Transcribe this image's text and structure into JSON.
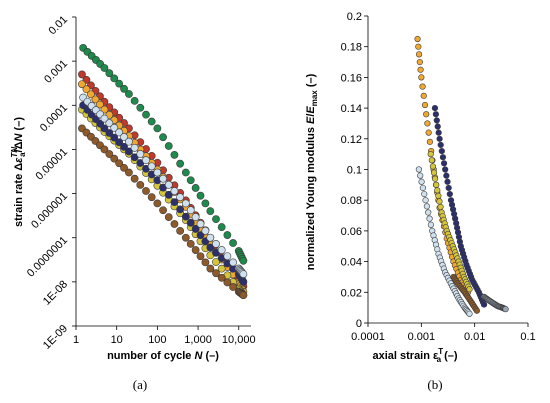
{
  "chart_data": [
    {
      "panel_label": "(a)",
      "type": "scatter",
      "title": "",
      "xlabel": "number of cycle N (–)",
      "xlabel_parts": [
        "number of cycle ",
        "N",
        " (–)"
      ],
      "ylabel": "strain rate Δε^TN_a/ΔN (–)",
      "ylabel_parts": {
        "a": "strain rate Δ",
        "b": "ε",
        "c": "TN",
        "d": "a",
        "e": "/Δ",
        "f": "N",
        "g": " (–)"
      },
      "x_scale": "log",
      "y_scale": "log",
      "xlim": [
        1,
        20000
      ],
      "ylim": [
        1e-09,
        0.01
      ],
      "x_ticks": [
        1,
        10,
        100,
        1000,
        10000
      ],
      "x_tick_labels": [
        "1",
        "10",
        "100",
        "1,000",
        "10,000"
      ],
      "y_ticks": [
        1e-09,
        1e-08,
        1e-07,
        1e-06,
        1e-05,
        0.0001,
        0.001,
        0.01
      ],
      "y_tick_labels": [
        "1E-09",
        "1E-08",
        "0.0000001",
        "0.000001",
        "0.00001",
        "0.0001",
        "0.001",
        "0.01"
      ],
      "grid": false,
      "series": [
        {
          "color": "#1e8a4c",
          "points": [
            [
              1.5,
              0.002
            ],
            [
              5,
              0.0007
            ],
            [
              20,
              0.00018
            ],
            [
              100,
              3e-05
            ],
            [
              500,
              3e-06
            ],
            [
              2000,
              4e-07
            ],
            [
              10000,
              5e-08
            ],
            [
              13000,
              3e-08
            ]
          ]
        },
        {
          "color": "#c0392b",
          "points": [
            [
              1.4,
              0.0005
            ],
            [
              5,
              0.00012
            ],
            [
              20,
              3e-05
            ],
            [
              100,
              5e-06
            ],
            [
              500,
              7e-07
            ],
            [
              2000,
              1e-07
            ],
            [
              8000,
              1.5e-08
            ],
            [
              13000,
              8e-09
            ]
          ]
        },
        {
          "color": "#f0a830",
          "points": [
            [
              1.4,
              0.0003
            ],
            [
              5,
              8e-05
            ],
            [
              20,
              2e-05
            ],
            [
              100,
              3.5e-06
            ],
            [
              500,
              5e-07
            ],
            [
              2000,
              7e-08
            ],
            [
              10000,
              1e-08
            ],
            [
              13000,
              6e-09
            ]
          ]
        },
        {
          "color": "#d4c53a",
          "points": [
            [
              1.4,
              8e-05
            ],
            [
              5,
              2.5e-05
            ],
            [
              20,
              8e-06
            ],
            [
              100,
              1.5e-06
            ],
            [
              500,
              2.5e-07
            ],
            [
              2000,
              4e-08
            ],
            [
              10000,
              7e-09
            ],
            [
              13000,
              5e-09
            ]
          ]
        },
        {
          "color": "#2b2f6b",
          "points": [
            [
              1.5,
              0.0001
            ],
            [
              5,
              3e-05
            ],
            [
              20,
              9e-06
            ],
            [
              100,
              2e-06
            ],
            [
              500,
              3e-07
            ],
            [
              2000,
              6e-08
            ],
            [
              10000,
              1.5e-08
            ],
            [
              13000,
              1e-08
            ]
          ]
        },
        {
          "color": "#cfe0ef",
          "points": [
            [
              1.5,
              0.00015
            ],
            [
              5,
              5e-05
            ],
            [
              20,
              1.5e-05
            ],
            [
              100,
              3e-06
            ],
            [
              500,
              6e-07
            ],
            [
              2000,
              1e-07
            ],
            [
              10000,
              2e-08
            ],
            [
              13000,
              1.5e-08
            ]
          ]
        },
        {
          "color": "#8e5a2a",
          "points": [
            [
              1.4,
              3e-05
            ],
            [
              5,
              1e-05
            ],
            [
              20,
              3e-06
            ],
            [
              100,
              6e-07
            ],
            [
              500,
              1e-07
            ],
            [
              2000,
              2e-08
            ],
            [
              10000,
              6e-09
            ],
            [
              13000,
              5e-09
            ]
          ]
        }
      ]
    },
    {
      "panel_label": "(b)",
      "type": "scatter",
      "title": "",
      "xlabel": "axial strain ε^T_a (–)",
      "xlabel_parts": {
        "a": "axial strain ",
        "b": "ε",
        "c": "T",
        "d": "a",
        "e": " (–)"
      },
      "ylabel": "normalized Young modulus E/E_max (–)",
      "ylabel_parts": {
        "a": "normalized Young modulus ",
        "b": "E",
        "c": "/",
        "d": "E",
        "e": "max",
        "f": " (–)"
      },
      "x_scale": "log",
      "y_scale": "linear",
      "xlim": [
        0.0001,
        0.1
      ],
      "ylim": [
        0,
        0.2
      ],
      "x_ticks": [
        0.0001,
        0.001,
        0.01,
        0.1
      ],
      "x_tick_labels": [
        "0.0001",
        "0.001",
        "0.01",
        "0.1"
      ],
      "y_ticks": [
        0,
        0.02,
        0.04,
        0.06,
        0.08,
        0.1,
        0.12,
        0.14,
        0.16,
        0.18,
        0.2
      ],
      "y_tick_labels": [
        "0",
        "0.02",
        "0.04",
        "0.06",
        "0.08",
        "0.1",
        "0.12",
        "0.14",
        "0.16",
        "0.18",
        "0.2"
      ],
      "grid": false,
      "series": [
        {
          "color": "#f0a830",
          "points": [
            [
              0.00085,
              0.185
            ],
            [
              0.001,
              0.16
            ],
            [
              0.0013,
              0.13
            ],
            [
              0.0017,
              0.1
            ],
            [
              0.0022,
              0.075
            ],
            [
              0.003,
              0.055
            ],
            [
              0.004,
              0.04
            ],
            [
              0.0055,
              0.028
            ],
            [
              0.0075,
              0.02
            ]
          ]
        },
        {
          "color": "#2b2f6b",
          "points": [
            [
              0.0018,
              0.14
            ],
            [
              0.0022,
              0.12
            ],
            [
              0.0028,
              0.1
            ],
            [
              0.0036,
              0.08
            ],
            [
              0.0045,
              0.065
            ],
            [
              0.0055,
              0.05
            ],
            [
              0.007,
              0.038
            ],
            [
              0.009,
              0.028
            ],
            [
              0.012,
              0.02
            ],
            [
              0.015,
              0.012
            ]
          ]
        },
        {
          "color": "#cfe0ef",
          "points": [
            [
              0.0009,
              0.1
            ],
            [
              0.0012,
              0.08
            ],
            [
              0.0016,
              0.06
            ],
            [
              0.0021,
              0.045
            ],
            [
              0.0028,
              0.033
            ],
            [
              0.0038,
              0.024
            ],
            [
              0.005,
              0.016
            ],
            [
              0.0065,
              0.01
            ],
            [
              0.008,
              0.006
            ]
          ]
        },
        {
          "color": "#d4c53a",
          "points": [
            [
              0.0015,
              0.11
            ],
            [
              0.0019,
              0.09
            ],
            [
              0.0024,
              0.072
            ],
            [
              0.003,
              0.06
            ],
            [
              0.0039,
              0.05
            ],
            [
              0.005,
              0.04
            ],
            [
              0.0063,
              0.03
            ],
            [
              0.008,
              0.022
            ]
          ]
        },
        {
          "color": "#9aa5b5",
          "points": [
            [
              0.015,
              0.017
            ],
            [
              0.018,
              0.015
            ],
            [
              0.022,
              0.013
            ],
            [
              0.027,
              0.011
            ],
            [
              0.033,
              0.01
            ],
            [
              0.038,
              0.009
            ]
          ]
        },
        {
          "color": "#8e5a2a",
          "points": [
            [
              0.004,
              0.03
            ],
            [
              0.005,
              0.025
            ],
            [
              0.0065,
              0.02
            ],
            [
              0.0085,
              0.014
            ],
            [
              0.011,
              0.008
            ]
          ]
        }
      ]
    }
  ]
}
